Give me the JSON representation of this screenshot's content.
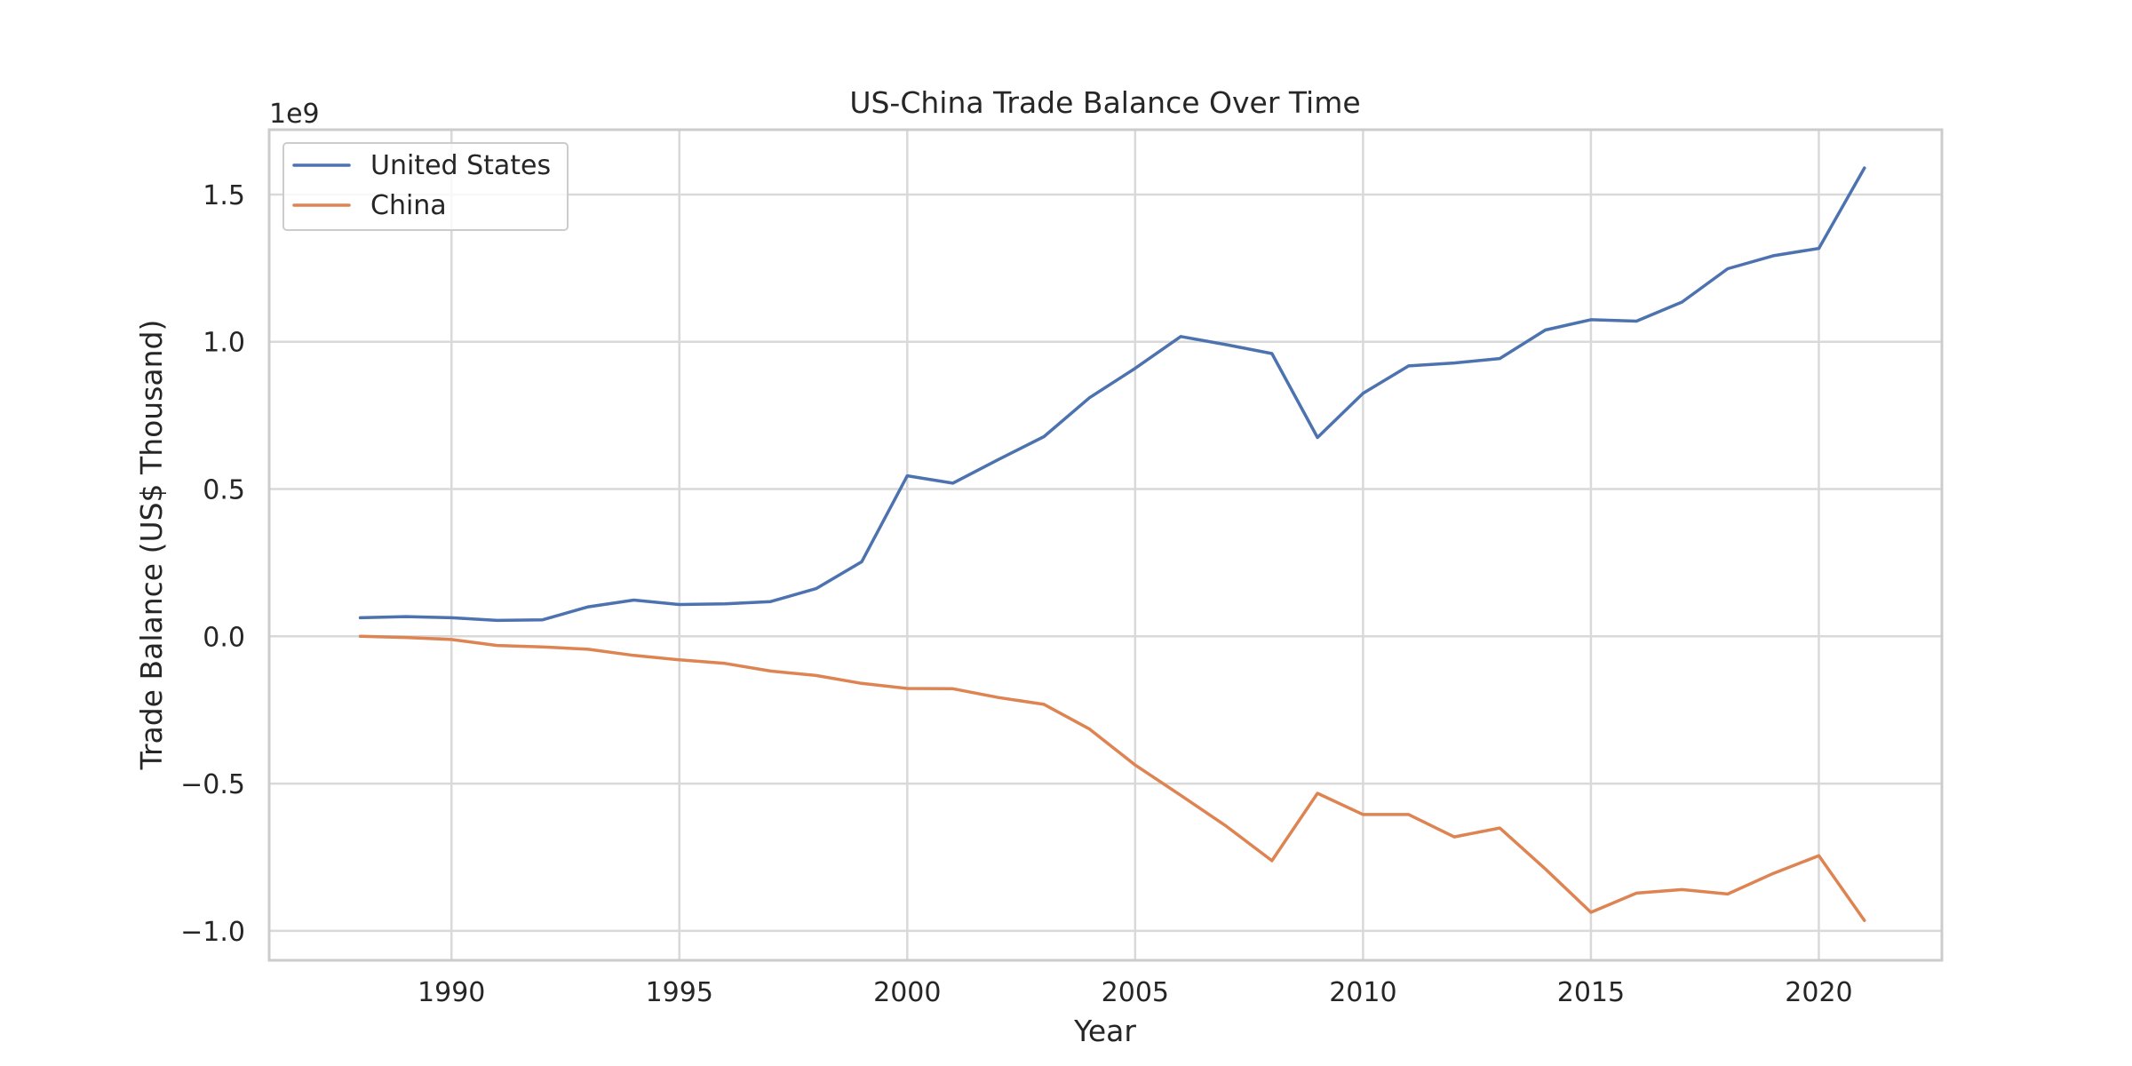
{
  "chart_data": {
    "type": "line",
    "title": "US-China Trade Balance Over Time",
    "xlabel": "Year",
    "ylabel": "Trade Balance (US$ Thousand)",
    "y_offset_label": "1e9",
    "xlim": [
      1986,
      2022.7
    ],
    "ylim": [
      -1.1,
      1.72
    ],
    "x_ticks": [
      1990,
      1995,
      2000,
      2005,
      2010,
      2015,
      2020
    ],
    "y_ticks": [
      -1.0,
      -0.5,
      0.0,
      0.5,
      1.0,
      1.5
    ],
    "y_tick_labels": [
      "−1.0",
      "−0.5",
      "0.0",
      "0.5",
      "1.0",
      "1.5"
    ],
    "grid": true,
    "legend_position": "upper left",
    "x": [
      1988,
      1989,
      1990,
      1991,
      1992,
      1993,
      1994,
      1995,
      1996,
      1997,
      1998,
      1999,
      2000,
      2001,
      2002,
      2003,
      2004,
      2005,
      2006,
      2007,
      2008,
      2009,
      2010,
      2011,
      2012,
      2013,
      2014,
      2015,
      2016,
      2017,
      2018,
      2019,
      2020,
      2021
    ],
    "series": [
      {
        "name": "United States",
        "color": "#4c72b0",
        "values": [
          0.063,
          0.067,
          0.063,
          0.054,
          0.056,
          0.1,
          0.123,
          0.108,
          0.11,
          0.118,
          0.162,
          0.253,
          0.545,
          0.52,
          0.6,
          0.678,
          0.81,
          0.91,
          1.018,
          0.99,
          0.96,
          0.675,
          0.825,
          0.918,
          0.928,
          0.943,
          1.04,
          1.075,
          1.07,
          1.135,
          1.248,
          1.292,
          1.317,
          1.59
        ]
      },
      {
        "name": "China",
        "color": "#dd8452",
        "values": [
          0.0,
          -0.004,
          -0.011,
          -0.031,
          -0.036,
          -0.044,
          -0.065,
          -0.08,
          -0.092,
          -0.118,
          -0.133,
          -0.16,
          -0.177,
          -0.178,
          -0.208,
          -0.231,
          -0.315,
          -0.437,
          -0.54,
          -0.645,
          -0.762,
          -0.533,
          -0.605,
          -0.605,
          -0.681,
          -0.651,
          -0.79,
          -0.937,
          -0.872,
          -0.86,
          -0.875,
          -0.805,
          -0.745,
          -0.965
        ]
      }
    ]
  }
}
